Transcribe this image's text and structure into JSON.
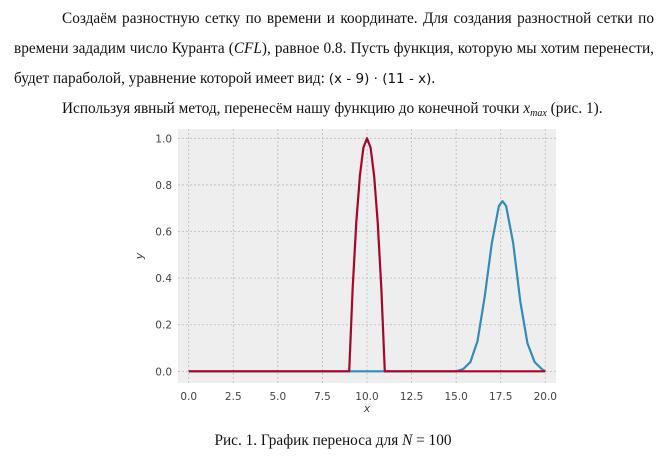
{
  "paragraph1": {
    "text_a": "Создаём разностную сетку по времени и координате. Для создания разностной сетки по времени зададим число Куранта (",
    "cfl": "CFL",
    "text_b": "), равное 0.8. Пусть функция, которую мы хотим перенести, будет параболой, уравнение которой имеет вид: ",
    "formula": "(x - 9) · (11 - x)",
    "text_c": "."
  },
  "paragraph2": {
    "text_a": "Используя явный метод, перенесём нашу функцию до конечной точки ",
    "x_symbol": "x",
    "x_sub": "max",
    "text_b": " (рис. 1)."
  },
  "caption": {
    "prefix": "Рис. 1. График переноса для ",
    "var": "N",
    "suffix": " = 100"
  },
  "chart_data": {
    "type": "line",
    "xlabel": "x",
    "ylabel": "y",
    "xlim": [
      -0.6,
      20.6
    ],
    "ylim": [
      -0.05,
      1.04
    ],
    "xticks": [
      0.0,
      2.5,
      5.0,
      7.5,
      10.0,
      12.5,
      15.0,
      17.5,
      20.0
    ],
    "xtick_labels": [
      "0.0",
      "2.5",
      "5.0",
      "7.5",
      "10.0",
      "12.5",
      "15.0",
      "17.5",
      "20.0"
    ],
    "yticks": [
      0.0,
      0.2,
      0.4,
      0.6,
      0.8,
      1.0
    ],
    "ytick_labels": [
      "0.0",
      "0.2",
      "0.4",
      "0.6",
      "0.8",
      "1.0"
    ],
    "grid": true,
    "series": [
      {
        "color": "#348abd",
        "x": [
          0,
          8.8,
          9.0,
          9.2,
          9.4,
          9.6,
          9.8,
          10.0,
          10.2,
          10.4,
          10.6,
          10.8,
          11.0,
          11.2,
          15.0,
          15.4,
          15.8,
          16.2,
          16.6,
          17.0,
          17.4,
          17.6,
          17.8,
          18.2,
          18.6,
          19.0,
          19.4,
          19.8,
          20.0
        ],
        "y": [
          0,
          0,
          0,
          0,
          0,
          0,
          0,
          0,
          0,
          0,
          0,
          0,
          0,
          0,
          0,
          0.01,
          0.04,
          0.13,
          0.32,
          0.55,
          0.71,
          0.73,
          0.71,
          0.55,
          0.3,
          0.12,
          0.04,
          0.01,
          0.0
        ]
      },
      {
        "color": "#a60628",
        "x": [
          0,
          8.8,
          9.0,
          9.2,
          9.4,
          9.6,
          9.8,
          10.0,
          10.2,
          10.4,
          10.6,
          10.8,
          11.0,
          11.2,
          15.0,
          20.0
        ],
        "y": [
          0,
          0,
          0,
          0.36,
          0.64,
          0.84,
          0.96,
          1.0,
          0.96,
          0.84,
          0.64,
          0.36,
          0,
          0,
          0,
          0
        ]
      }
    ]
  }
}
